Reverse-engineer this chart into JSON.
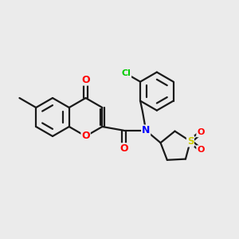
{
  "background_color": "#EBEBEB",
  "bond_color": "#1a1a1a",
  "atom_colors": {
    "O": "#FF0000",
    "N": "#0000FF",
    "Cl": "#00CC00",
    "S": "#CCCC00",
    "C": "#1a1a1a"
  },
  "figsize": [
    3.0,
    3.0
  ],
  "dpi": 100,
  "bond_lw": 1.6
}
